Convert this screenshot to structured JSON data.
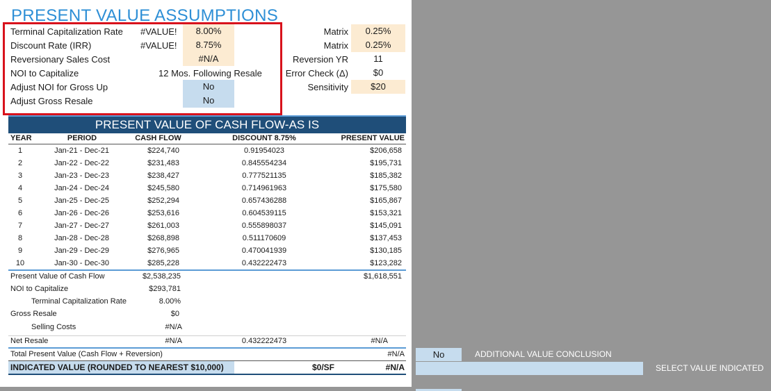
{
  "title": "PRESENT VALUE ASSUMPTIONS",
  "assumptions": {
    "terminal_cap_rate": {
      "label": "Terminal Capitalization Rate",
      "flag": "#VALUE!",
      "value": "8.00%"
    },
    "discount_rate": {
      "label": "Discount Rate (IRR)",
      "flag": "#VALUE!",
      "value": "8.75%"
    },
    "reversionary_cost": {
      "label": "Reversionary Sales Cost",
      "value": "#N/A"
    },
    "noi_to_capitalize": {
      "label": "NOI to Capitalize",
      "value": "12 Mos. Following Resale"
    },
    "adjust_noi": {
      "label": "Adjust NOI for Gross Up",
      "value": "No"
    },
    "adjust_gross_resale": {
      "label": "Adjust Gross Resale",
      "value": "No"
    }
  },
  "right_params": {
    "matrix1": {
      "label": "Matrix",
      "value": "0.25%"
    },
    "matrix2": {
      "label": "Matrix",
      "value": "0.25%"
    },
    "reversion_yr": {
      "label": "Reversion YR",
      "value": "11"
    },
    "error_check": {
      "label": "Error Check (Δ)",
      "value": "$0"
    },
    "sensitivity": {
      "label": "Sensitivity",
      "value": "$20"
    }
  },
  "cf_title": "PRESENT VALUE OF CASH FLOW-AS IS",
  "columns": {
    "year": "YEAR",
    "period": "PERIOD",
    "cash_flow": "CASH FLOW",
    "discount": "DISCOUNT  8.75%",
    "pv": "PRESENT VALUE"
  },
  "rows": [
    {
      "year": "1",
      "period": "Jan-21 - Dec-21",
      "cf": "$224,740",
      "disc": "0.91954023",
      "pv": "$206,658"
    },
    {
      "year": "2",
      "period": "Jan-22 - Dec-22",
      "cf": "$231,483",
      "disc": "0.845554234",
      "pv": "$195,731"
    },
    {
      "year": "3",
      "period": "Jan-23 - Dec-23",
      "cf": "$238,427",
      "disc": "0.777521135",
      "pv": "$185,382"
    },
    {
      "year": "4",
      "period": "Jan-24 - Dec-24",
      "cf": "$245,580",
      "disc": "0.714961963",
      "pv": "$175,580"
    },
    {
      "year": "5",
      "period": "Jan-25 - Dec-25",
      "cf": "$252,294",
      "disc": "0.657436288",
      "pv": "$165,867"
    },
    {
      "year": "6",
      "period": "Jan-26 - Dec-26",
      "cf": "$253,616",
      "disc": "0.604539115",
      "pv": "$153,321"
    },
    {
      "year": "7",
      "period": "Jan-27 - Dec-27",
      "cf": "$261,003",
      "disc": "0.555898037",
      "pv": "$145,091"
    },
    {
      "year": "8",
      "period": "Jan-28 - Dec-28",
      "cf": "$268,898",
      "disc": "0.511170609",
      "pv": "$137,453"
    },
    {
      "year": "9",
      "period": "Jan-29 - Dec-29",
      "cf": "$276,965",
      "disc": "0.470041939",
      "pv": "$130,185"
    },
    {
      "year": "10",
      "period": "Jan-30 - Dec-30",
      "cf": "$285,228",
      "disc": "0.432222473",
      "pv": "$123,282"
    }
  ],
  "summary": {
    "pv_cf": {
      "label": "Present Value of Cash Flow",
      "cf": "$2,538,235",
      "pv": "$1,618,551"
    },
    "noi_cap": {
      "label": "NOI to Capitalize",
      "cf": "$293,781"
    },
    "tcr": {
      "label": "Terminal Capitalization Rate",
      "cf": "8.00%"
    },
    "gross_resale": {
      "label": "Gross Resale",
      "cf": "$0"
    },
    "selling_costs": {
      "label": "Selling Costs",
      "cf": "#N/A"
    },
    "net_resale": {
      "label": "Net Resale",
      "cf": "#N/A",
      "disc": "0.432222473",
      "pv": "#N/A"
    },
    "total_pv": {
      "label": "Total Present Value (Cash Flow + Reversion)",
      "pv": "#N/A"
    },
    "indicated": {
      "label": "INDICATED VALUE (ROUNDED TO NEAREST $10,000)",
      "sf": "$0/SF",
      "pv": "#N/A"
    }
  },
  "side": {
    "no_value": "No",
    "additional_label": "ADDITIONAL VALUE CONCLUSION",
    "select_label": "SELECT VALUE INDICATED"
  },
  "colors": {
    "accent_blue": "#2e8fd6",
    "header_bar": "#1f4e79",
    "tan": "#fcebd2",
    "light_blue": "#c6dcee",
    "red_box": "#d8121c"
  }
}
